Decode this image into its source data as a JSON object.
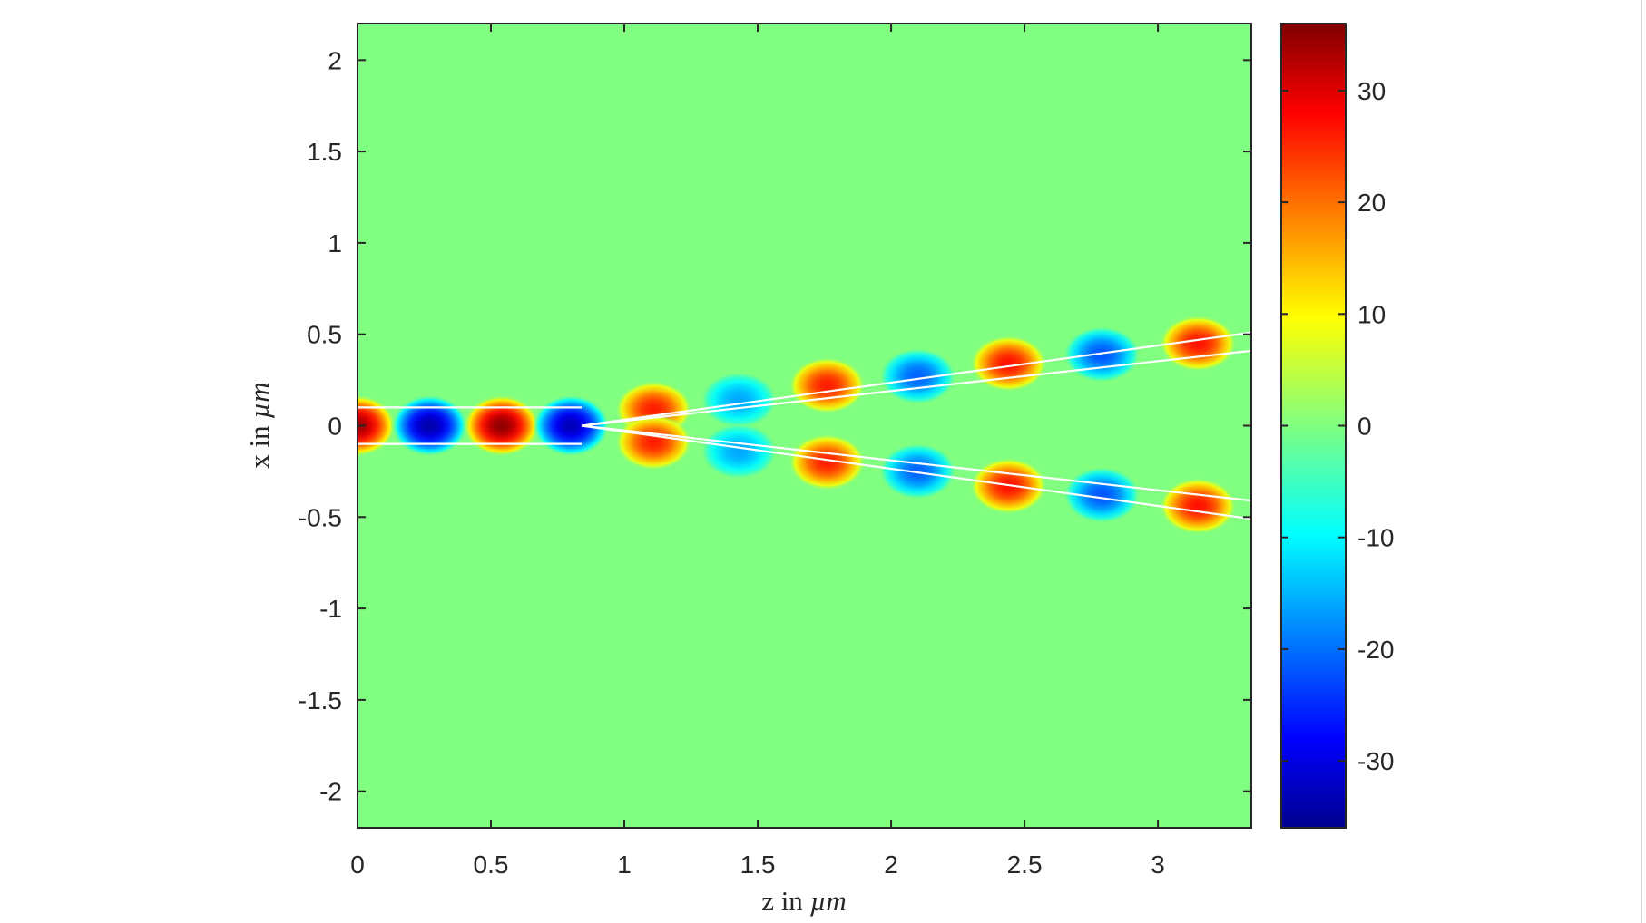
{
  "chart_data": {
    "type": "heatmap",
    "title": "",
    "xlabel": {
      "prefix": "z in ",
      "unit": "µm"
    },
    "ylabel": {
      "prefix": "x in ",
      "unit": "µm"
    },
    "xlim": [
      0,
      3.35
    ],
    "ylim": [
      -2.2,
      2.2
    ],
    "clim": [
      -36,
      36
    ],
    "colormap": "jet",
    "grid": false,
    "x_ticks": [
      0,
      0.5,
      1,
      1.5,
      2,
      2.5,
      3
    ],
    "x_tick_labels": [
      "0",
      "0.5",
      "1",
      "1.5",
      "2",
      "2.5",
      "3"
    ],
    "y_ticks": [
      2,
      1.5,
      1,
      0.5,
      0,
      -0.5,
      -1,
      -1.5,
      -2
    ],
    "y_tick_labels": [
      "2",
      "1.5",
      "1",
      "0.5",
      "0",
      "-0.5",
      "-1",
      "-1.5",
      "-2"
    ],
    "colorbar": {
      "location": "right",
      "ticks": [
        30,
        20,
        10,
        0,
        -10,
        -20,
        -30
      ],
      "tick_labels": [
        "30",
        "20",
        "10",
        "0",
        "-10",
        "-20",
        "-30"
      ]
    },
    "field_extrema": [
      {
        "z": 0.0,
        "x": 0.0,
        "value": 34
      },
      {
        "z": 0.27,
        "x": 0.0,
        "value": -34
      },
      {
        "z": 0.54,
        "x": 0.0,
        "value": 35
      },
      {
        "z": 0.8,
        "x": 0.0,
        "value": -33
      },
      {
        "z": 1.11,
        "x": 0.09,
        "value": 26
      },
      {
        "z": 1.11,
        "x": -0.09,
        "value": 26
      },
      {
        "z": 1.43,
        "x": 0.14,
        "value": -16
      },
      {
        "z": 1.43,
        "x": -0.14,
        "value": -16
      },
      {
        "z": 1.76,
        "x": 0.22,
        "value": 26
      },
      {
        "z": 1.76,
        "x": -0.2,
        "value": 26
      },
      {
        "z": 2.1,
        "x": 0.27,
        "value": -21
      },
      {
        "z": 2.1,
        "x": -0.25,
        "value": -21
      },
      {
        "z": 2.44,
        "x": 0.34,
        "value": 27
      },
      {
        "z": 2.44,
        "x": -0.33,
        "value": 27
      },
      {
        "z": 2.79,
        "x": 0.39,
        "value": -22
      },
      {
        "z": 2.79,
        "x": -0.38,
        "value": -22
      },
      {
        "z": 3.15,
        "x": 0.45,
        "value": 27
      },
      {
        "z": 3.15,
        "x": -0.44,
        "value": 27
      }
    ],
    "guides": [
      {
        "name": "input",
        "points": [
          [
            0,
            0.1
          ],
          [
            0.84,
            0.1
          ]
        ]
      },
      {
        "name": "input",
        "points": [
          [
            0,
            -0.1
          ],
          [
            0.84,
            -0.1
          ]
        ]
      },
      {
        "name": "upper-branch",
        "points": [
          [
            0.84,
            0
          ],
          [
            3.35,
            0.51
          ]
        ]
      },
      {
        "name": "upper-branch",
        "points": [
          [
            0.84,
            0
          ],
          [
            3.35,
            0.41
          ]
        ]
      },
      {
        "name": "lower-branch",
        "points": [
          [
            0.84,
            0
          ],
          [
            3.35,
            -0.41
          ]
        ]
      },
      {
        "name": "lower-branch",
        "points": [
          [
            0.84,
            0
          ],
          [
            3.35,
            -0.51
          ]
        ]
      }
    ]
  }
}
